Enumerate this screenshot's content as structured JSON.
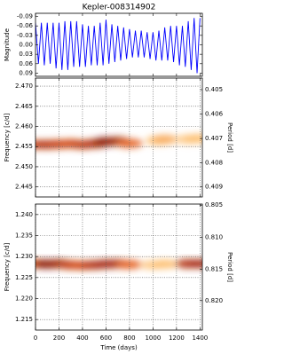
{
  "chart_data": [
    {
      "type": "line",
      "title": "Kepler-008314902",
      "ylabel": "Magnitude",
      "xlim": [
        0,
        1420
      ],
      "xticks": [
        0,
        200,
        400,
        600,
        800,
        1000,
        1200,
        1400
      ],
      "ylim": [
        0.1,
        -0.1
      ],
      "yticks": [
        -0.09,
        -0.06,
        -0.03,
        {
          "value": 0,
          "label": "0.00"
        },
        0.03,
        0.06,
        0.09
      ],
      "grid": false,
      "x": [
        0,
        25,
        50,
        75,
        100,
        125,
        150,
        175,
        200,
        225,
        250,
        275,
        300,
        325,
        350,
        375,
        400,
        425,
        450,
        475,
        500,
        525,
        550,
        575,
        600,
        625,
        650,
        675,
        700,
        725,
        750,
        775,
        800,
        825,
        850,
        875,
        900,
        925,
        950,
        975,
        1000,
        1025,
        1050,
        1075,
        1100,
        1125,
        1150,
        1175,
        1200,
        1225,
        1250,
        1275,
        1300,
        1325,
        1350,
        1375,
        1400
      ],
      "series": [
        {
          "color": "#0000ff",
          "values": [
            -0.07,
            0.06,
            -0.07,
            0.065,
            -0.07,
            0.06,
            -0.07,
            0.075,
            -0.07,
            0.08,
            -0.075,
            0.08,
            -0.075,
            0.07,
            -0.075,
            0.07,
            -0.065,
            0.07,
            -0.06,
            0.065,
            -0.06,
            0.065,
            -0.07,
            0.065,
            -0.08,
            0.06,
            -0.065,
            0.055,
            -0.06,
            0.05,
            -0.055,
            0.045,
            -0.05,
            0.04,
            -0.045,
            0.04,
            -0.045,
            0.04,
            -0.04,
            0.045,
            -0.04,
            0.05,
            -0.045,
            0.05,
            -0.055,
            0.05,
            -0.06,
            0.055,
            -0.06,
            0.065,
            -0.06,
            0.07,
            -0.075,
            0.08,
            -0.085,
            0.09,
            -0.085
          ]
        }
      ]
    },
    {
      "type": "heatmap",
      "ylabel": "Frequency [c/d]",
      "y2label": "Period [d]",
      "xlim": [
        0,
        1420
      ],
      "xticks": [
        0,
        200,
        400,
        600,
        800,
        1000,
        1200,
        1400
      ],
      "ylim": [
        2.4425,
        2.472
      ],
      "yticks": [
        2.445,
        {
          "value": 2.45,
          "label": "2.450"
        },
        2.455,
        {
          "value": 2.46,
          "label": "2.460"
        },
        2.465,
        {
          "value": 2.47,
          "label": "2.470"
        }
      ],
      "y2scale": "reciprocal",
      "y2ticks": [
        0.405,
        0.406,
        0.407,
        0.408,
        0.409
      ],
      "grid": true,
      "x": [
        0,
        100,
        200,
        300,
        400,
        500,
        600,
        700,
        800,
        1050,
        1100,
        1300,
        1380
      ],
      "values": [
        2.4555,
        2.4555,
        2.4556,
        2.4557,
        2.4555,
        2.4557,
        2.4562,
        2.4563,
        2.4558,
        2.4565,
        2.4568,
        2.4568,
        2.457
      ],
      "power": [
        0.7,
        0.8,
        0.75,
        0.7,
        0.75,
        0.8,
        0.95,
        0.9,
        0.6,
        0.35,
        0.4,
        0.3,
        0.35
      ]
    },
    {
      "type": "heatmap",
      "ylabel": "Frequency [c/d]",
      "y2label": "Period [d]",
      "xlabel": "Time (days)",
      "xlim": [
        0,
        1420
      ],
      "xticks": [
        0,
        200,
        400,
        600,
        800,
        1000,
        1200,
        1400
      ],
      "ylim": [
        1.2125,
        1.2425
      ],
      "yticks": [
        1.215,
        {
          "value": 1.22,
          "label": "1.220"
        },
        1.225,
        {
          "value": 1.23,
          "label": "1.230"
        },
        1.235,
        {
          "value": 1.24,
          "label": "1.240"
        }
      ],
      "y2scale": "reciprocal",
      "y2ticks": [
        0.805,
        {
          "value": 0.81,
          "label": "0.810"
        },
        0.815,
        {
          "value": 0.82,
          "label": "0.820"
        }
      ],
      "grid": true,
      "x": [
        0,
        100,
        200,
        300,
        400,
        500,
        600,
        700,
        800,
        1000,
        1100,
        1300,
        1400
      ],
      "values": [
        1.2283,
        1.2282,
        1.2283,
        1.228,
        1.2279,
        1.228,
        1.2282,
        1.2283,
        1.2281,
        1.228,
        1.2282,
        1.2283,
        1.2283
      ],
      "power": [
        0.7,
        0.95,
        0.9,
        0.75,
        0.7,
        0.8,
        0.85,
        0.85,
        0.6,
        0.3,
        0.35,
        0.8,
        0.85
      ]
    }
  ]
}
